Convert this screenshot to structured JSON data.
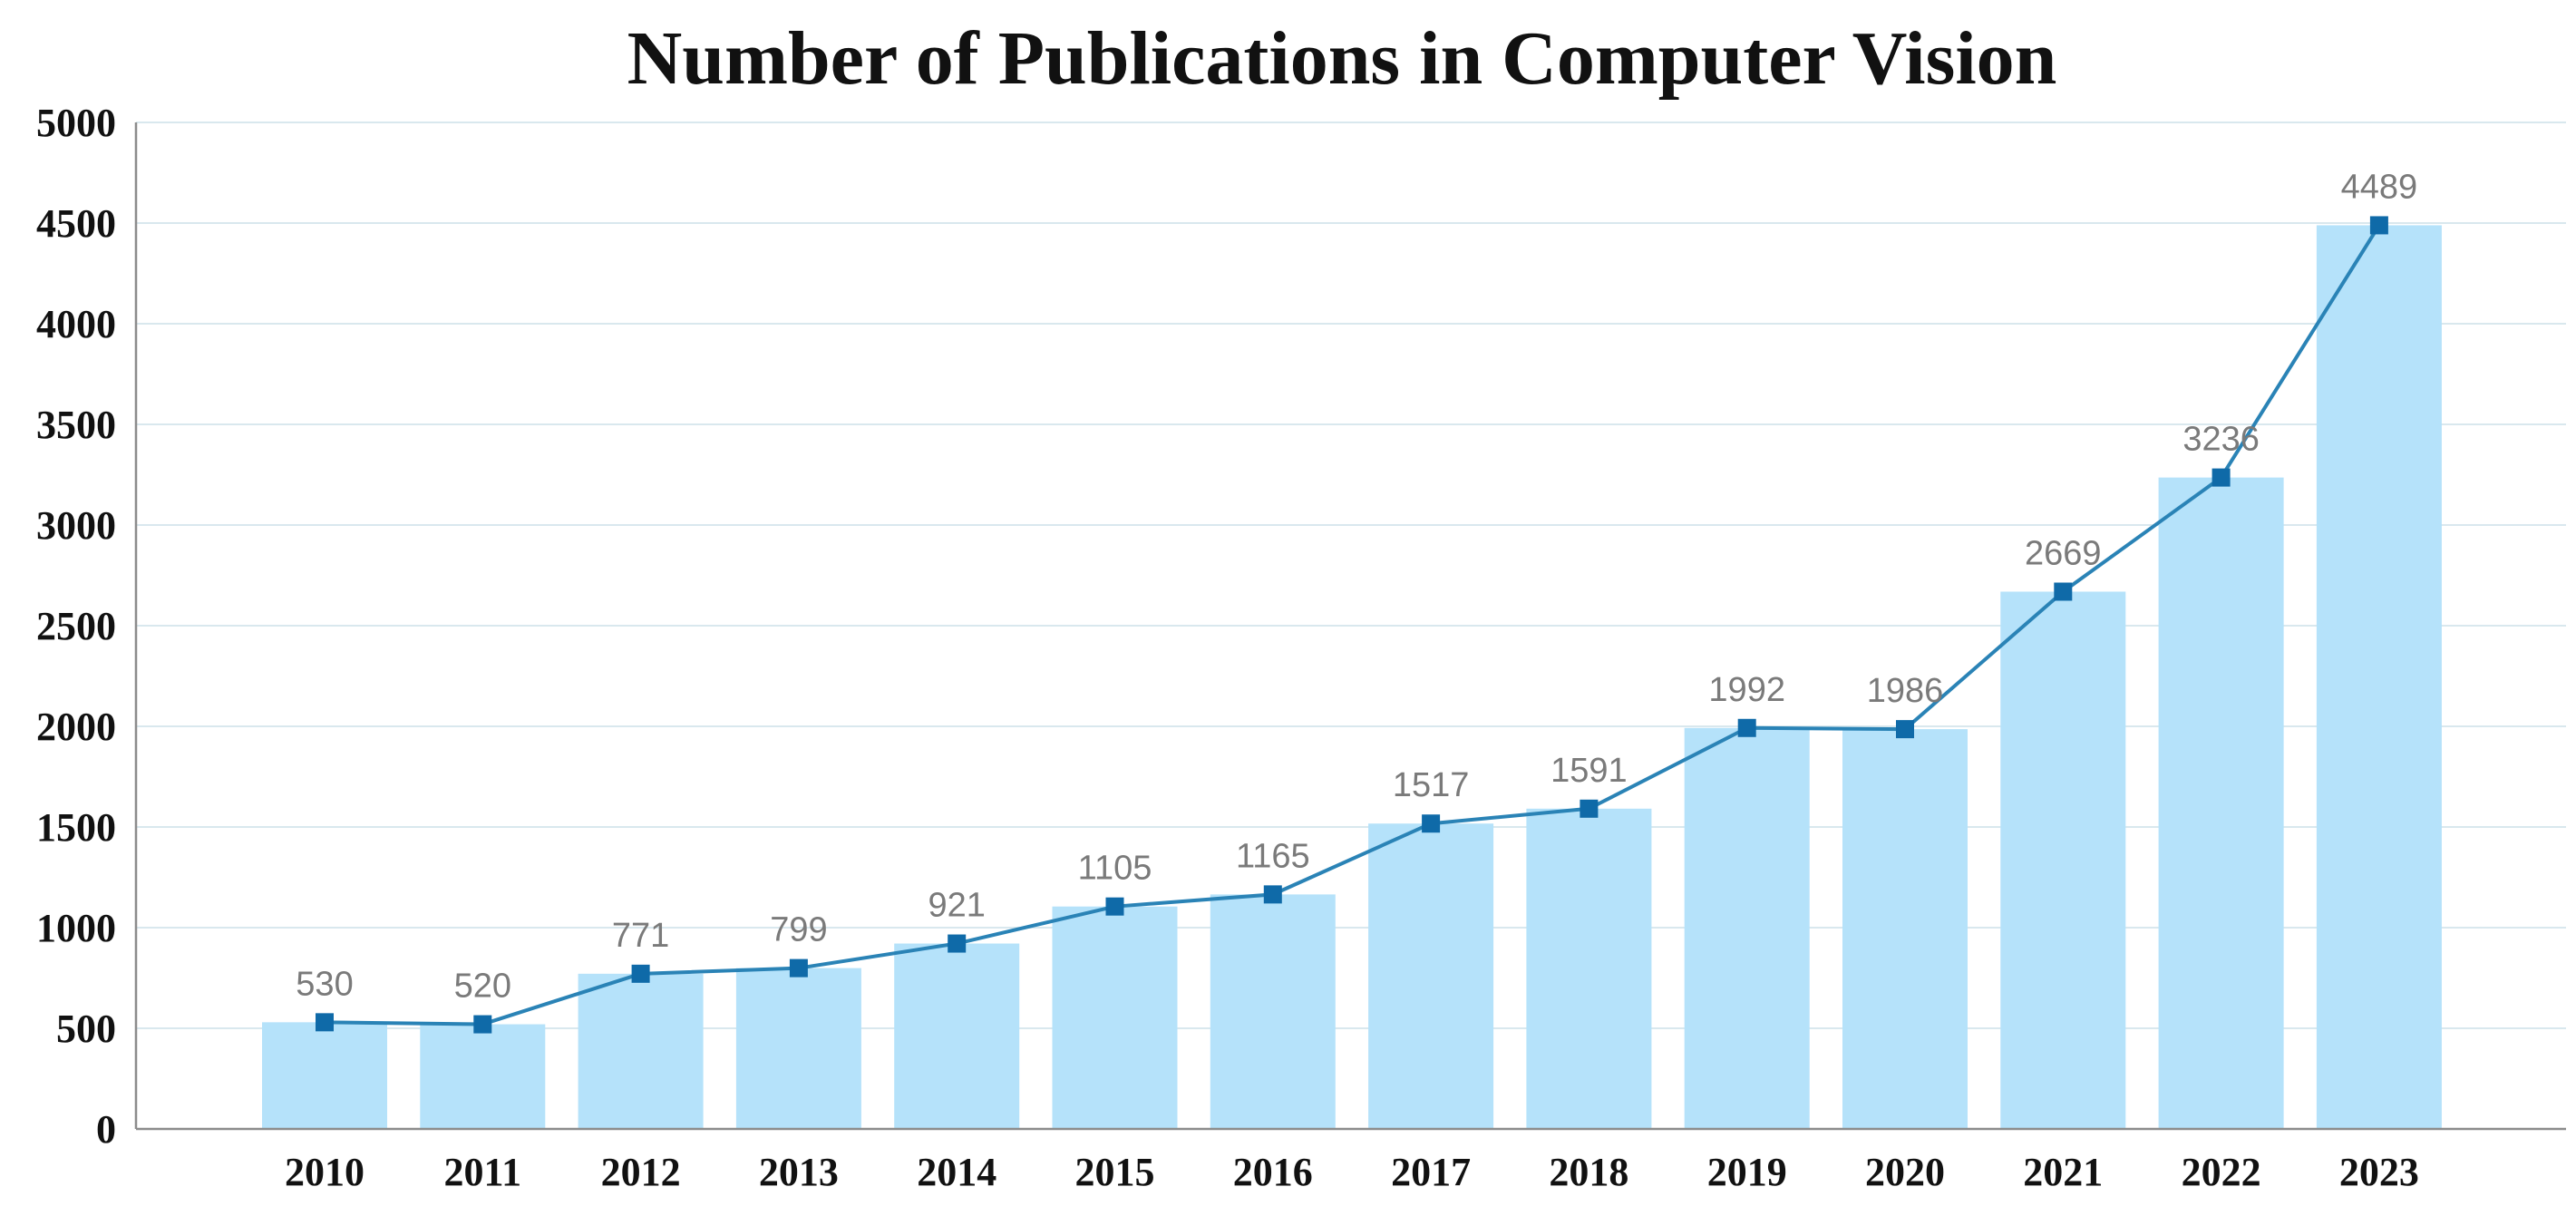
{
  "chart_data": {
    "type": "bar",
    "title": "Number of Publications in Computer Vision",
    "xlabel": "",
    "ylabel": "",
    "categories": [
      "2010",
      "2011",
      "2012",
      "2013",
      "2014",
      "2015",
      "2016",
      "2017",
      "2018",
      "2019",
      "2020",
      "2021",
      "2022",
      "2023"
    ],
    "values": [
      530,
      520,
      771,
      799,
      921,
      1105,
      1165,
      1517,
      1591,
      1992,
      1986,
      2669,
      3236,
      4489
    ],
    "data_labels": [
      "530",
      "520",
      "771",
      "799",
      "921",
      "1105",
      "1165",
      "1517",
      "1591",
      "1992",
      "1986",
      "2669",
      "3236",
      "4489"
    ],
    "overlay": "line-with-square-markers",
    "ylim": [
      0,
      5000
    ],
    "yticks": [
      "0",
      "500",
      "1000",
      "1500",
      "2000",
      "2500",
      "3000",
      "3500",
      "4000",
      "4500",
      "5000"
    ],
    "grid": true,
    "legend": "none",
    "colors": {
      "bar": "#b5e2fa",
      "line": "#2a83b6",
      "marker": "#0f6aa8",
      "data_label": "#7a7a7a",
      "grid": "#d9e8ee",
      "axis": "#8c8c8c"
    }
  }
}
